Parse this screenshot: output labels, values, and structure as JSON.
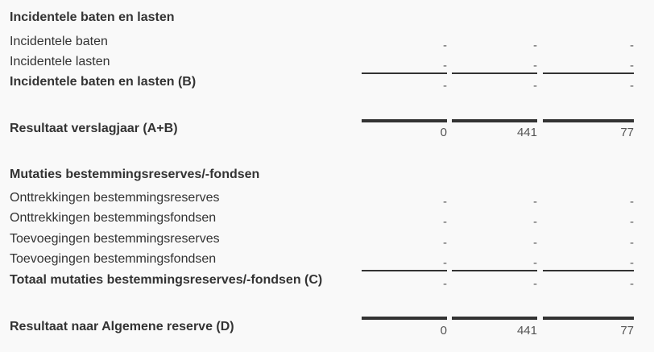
{
  "rows": [
    {
      "label": "Incidentele baten en lasten"
    },
    {
      "label": "Incidentele baten",
      "values": [
        "-",
        "-",
        "-"
      ]
    },
    {
      "label": "Incidentele lasten",
      "values": [
        "-",
        "-",
        "-"
      ]
    },
    {
      "label": "Incidentele baten en lasten (B)",
      "values": [
        "-",
        "-",
        "-"
      ]
    },
    {
      "label": "Resultaat verslagjaar (A+B)",
      "values": [
        0,
        441,
        77
      ]
    },
    {
      "label": "Mutaties bestemmingsreserves/-fondsen"
    },
    {
      "label": "Onttrekkingen bestemmingsreserves",
      "values": [
        "-",
        "-",
        "-"
      ]
    },
    {
      "label": "Onttrekkingen bestemmingsfondsen",
      "values": [
        "-",
        "-",
        "-"
      ]
    },
    {
      "label": "Toevoegingen bestemmingsreserves",
      "values": [
        "-",
        "-",
        "-"
      ]
    },
    {
      "label": "Toevoegingen bestemmingsfondsen",
      "values": [
        "-",
        "-",
        "-"
      ]
    },
    {
      "label": "Totaal mutaties bestemmingsreserves/-fondsen (C)",
      "values": [
        "-",
        "-",
        "-"
      ]
    },
    {
      "label": "Resultaat naar Algemene reserve (D)",
      "values": [
        0,
        441,
        77
      ]
    }
  ]
}
